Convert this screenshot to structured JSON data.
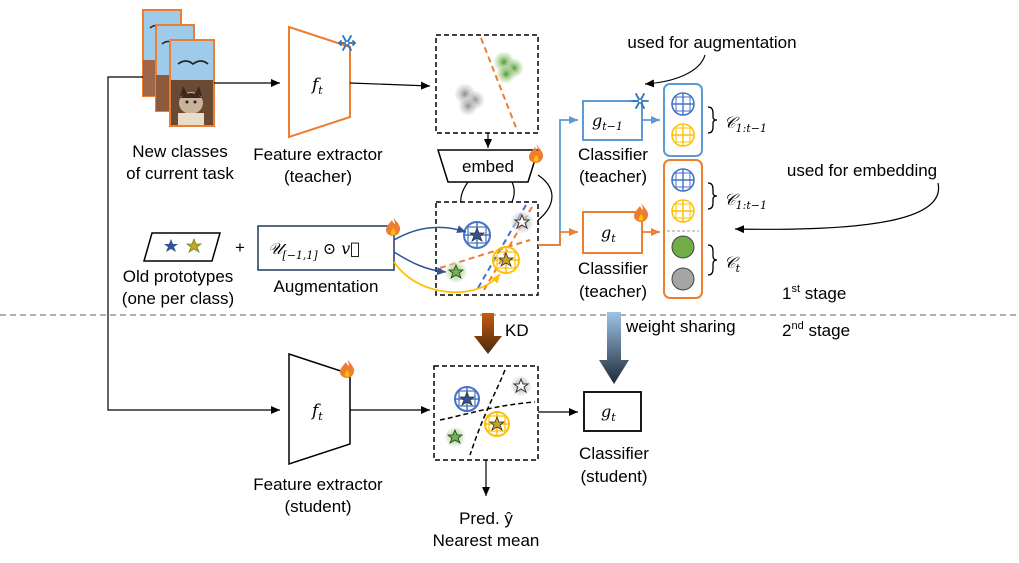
{
  "labels": {
    "new_classes_line1": "New classes",
    "new_classes_line2": "of current task",
    "feature_extractor_teacher_line1": "Feature extractor",
    "feature_extractor_teacher_line2": "(teacher)",
    "embed": "embed",
    "used_for_augmentation": "used for augmentation",
    "used_for_embedding": "used for embedding",
    "classifier_teacher_top_line1": "Classifier",
    "classifier_teacher_top_line2": "(teacher)",
    "classifier_teacher_bottom_line1": "Classifier",
    "classifier_teacher_bottom_line2": "(teacher)",
    "old_prototypes_line1": "Old prototypes",
    "old_prototypes_line2": "(one per class)",
    "plus": "+",
    "augmentation": "Augmentation",
    "first_stage_num": "1",
    "first_stage_sup": "st",
    "first_stage_word": " stage",
    "second_stage_num": "2",
    "second_stage_sup": "nd",
    "second_stage_word": " stage",
    "kd": "KD",
    "weight_sharing": "weight sharing",
    "feature_extractor_student_line1": "Feature extractor",
    "feature_extractor_student_line2": "(student)",
    "classifier_student_line1": "Classifier",
    "classifier_student_line2": "(student)",
    "pred_line1": "Pred. ŷ",
    "pred_line2": "Nearest mean"
  },
  "math": {
    "f": "f",
    "t": "t",
    "t_minus_1": "t−1",
    "g": "g",
    "aug_U": "𝒰",
    "aug_interval": "[−1,1]",
    "aug_rest": " ⊙ v⃗",
    "C": "𝒞",
    "c_old_sub": "1:t−1"
  },
  "colors": {
    "orange": "#ED7D31",
    "blue": "#4472C4",
    "yellow": "#FFC000",
    "green": "#70AD47",
    "gray": "#A5A5A5",
    "light_blue": "#5B9BD5",
    "dark_navy": "#1F3864",
    "brown": "#8B4513"
  }
}
